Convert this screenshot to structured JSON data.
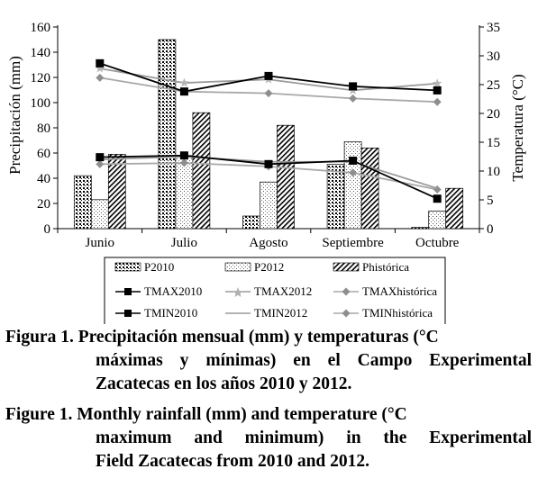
{
  "chart_data": {
    "type": "bar",
    "categories": [
      "Junio",
      "Julio",
      "Agosto",
      "Septiembre",
      "Octubre"
    ],
    "ylabel": "Precipitación (mm)",
    "y2label": "Temperatura (°C)",
    "ylim": [
      0,
      160
    ],
    "yticks": [
      0,
      20,
      40,
      60,
      80,
      100,
      120,
      140,
      160
    ],
    "y2lim": [
      0,
      35
    ],
    "y2ticks": [
      0,
      5,
      10,
      15,
      20,
      25,
      30,
      35
    ],
    "legend_position": "bottom",
    "bar_series": [
      {
        "name": "P2010",
        "values": [
          42,
          150,
          10,
          51,
          1
        ]
      },
      {
        "name": "P2012",
        "values": [
          23,
          58,
          37,
          69,
          14
        ]
      },
      {
        "name": "Phistórica",
        "values": [
          59,
          92,
          82,
          64,
          32
        ]
      }
    ],
    "line_series": [
      {
        "name": "TMAX2010",
        "values": [
          28.7,
          23.8,
          26.5,
          24.7,
          24.0
        ]
      },
      {
        "name": "TMAX2012",
        "values": [
          27.8,
          25.3,
          25.9,
          24.0,
          25.2
        ]
      },
      {
        "name": "TMAXhistórica",
        "values": [
          26.2,
          23.8,
          23.5,
          22.6,
          22.0
        ]
      },
      {
        "name": "TMIN2010",
        "values": [
          12.4,
          12.7,
          11.2,
          11.8,
          5.2
        ]
      },
      {
        "name": "TMIN2012",
        "values": [
          12.0,
          12.5,
          11.6,
          11.6,
          7.0
        ]
      },
      {
        "name": "TMINhistórica",
        "values": [
          11.2,
          11.4,
          10.8,
          9.7,
          6.8
        ]
      }
    ]
  },
  "legend": {
    "p2010": "P2010",
    "p2012": "P2012",
    "phist": "Phistórica",
    "tmax2010": "TMAX2010",
    "tmax2012": "TMAX2012",
    "tmaxhist": "TMAXhistórica",
    "tmin2010": "TMIN2010",
    "tmin2012": "TMIN2012",
    "tminhist": "TMINhistórica"
  },
  "caption_es": {
    "line1": "Figura 1. Precipitación mensual (mm) y temperaturas (°C",
    "line2": "máximas y mínimas) en el Campo Experimental",
    "line3": "Zacatecas en los años 2010 y 2012."
  },
  "caption_en": {
    "line1": "Figure 1. Monthly rainfall (mm) and temperature (°C",
    "line2": "maximum and minimum) in the Experimental",
    "line3": "Field Zacatecas from 2010 and 2012."
  }
}
